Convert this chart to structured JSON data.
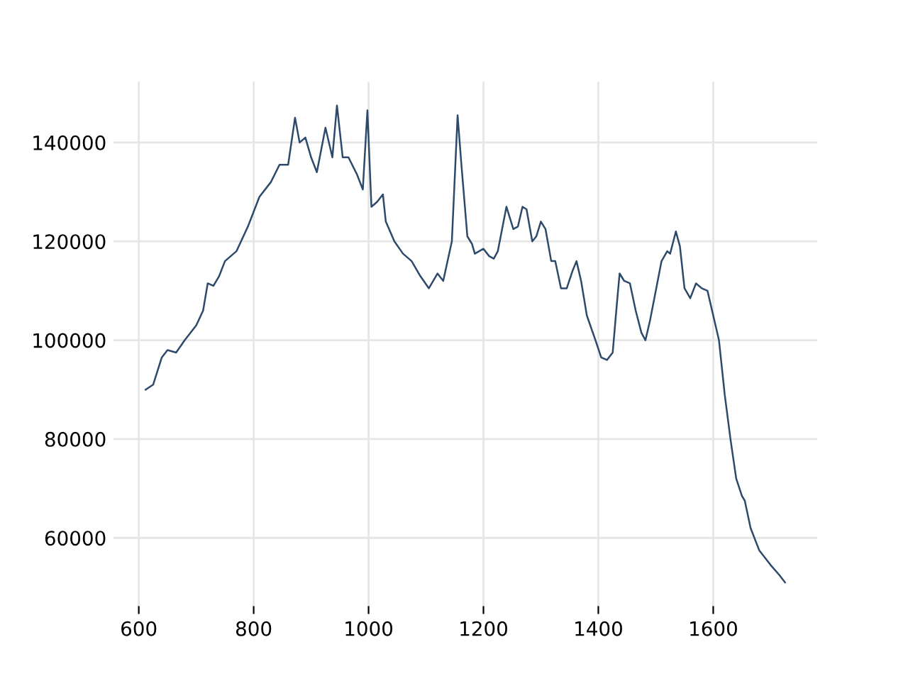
{
  "chart_data": {
    "type": "line",
    "x": [
      612,
      625,
      640,
      650,
      665,
      680,
      700,
      712,
      720,
      730,
      740,
      750,
      770,
      790,
      810,
      830,
      845,
      860,
      872,
      880,
      890,
      900,
      910,
      925,
      937,
      945,
      955,
      965,
      980,
      990,
      998,
      1005,
      1015,
      1025,
      1030,
      1045,
      1060,
      1075,
      1090,
      1105,
      1120,
      1130,
      1145,
      1155,
      1162,
      1172,
      1180,
      1185,
      1200,
      1210,
      1218,
      1225,
      1240,
      1252,
      1260,
      1268,
      1275,
      1285,
      1292,
      1300,
      1308,
      1318,
      1325,
      1335,
      1345,
      1355,
      1362,
      1370,
      1380,
      1395,
      1405,
      1415,
      1425,
      1432,
      1437,
      1445,
      1455,
      1465,
      1475,
      1482,
      1490,
      1500,
      1510,
      1520,
      1525,
      1535,
      1542,
      1550,
      1560,
      1570,
      1580,
      1590,
      1600,
      1610,
      1620,
      1630,
      1640,
      1650,
      1655,
      1665,
      1680,
      1700,
      1715,
      1725
    ],
    "series": [
      {
        "color": "#2e4a6b",
        "values": [
          90000,
          91000,
          96500,
          98000,
          97500,
          100000,
          103000,
          106000,
          111500,
          111000,
          113000,
          116000,
          118000,
          123000,
          129000,
          132000,
          135500,
          135500,
          145000,
          140000,
          141000,
          137000,
          134000,
          143000,
          137000,
          147500,
          137000,
          137000,
          133500,
          130500,
          146500,
          127000,
          128000,
          129500,
          124000,
          120000,
          117500,
          116000,
          113000,
          110500,
          113500,
          112000,
          120000,
          145500,
          135000,
          121000,
          119500,
          117500,
          118500,
          117000,
          116500,
          118000,
          127000,
          122500,
          123000,
          127000,
          126500,
          120000,
          121000,
          124000,
          122500,
          116000,
          116000,
          110500,
          110500,
          114000,
          116000,
          112000,
          105000,
          100000,
          96500,
          96000,
          97500,
          107000,
          113500,
          112000,
          111500,
          106000,
          101500,
          100000,
          104000,
          110000,
          116000,
          118000,
          117500,
          122000,
          119000,
          110500,
          108500,
          111500,
          110500,
          110000,
          105000,
          100000,
          89000,
          80000,
          72000,
          68500,
          67500,
          62000,
          57500,
          54500,
          52500,
          51000
        ]
      }
    ],
    "xlim": [
      556,
      1781
    ],
    "ylim": [
      46200,
      152300
    ],
    "xticks": [
      600,
      800,
      1000,
      1200,
      1400,
      1600
    ],
    "yticks": [
      60000,
      80000,
      100000,
      120000,
      140000
    ],
    "grid": true,
    "legend": false,
    "marker": "none",
    "line_style": "solid"
  }
}
